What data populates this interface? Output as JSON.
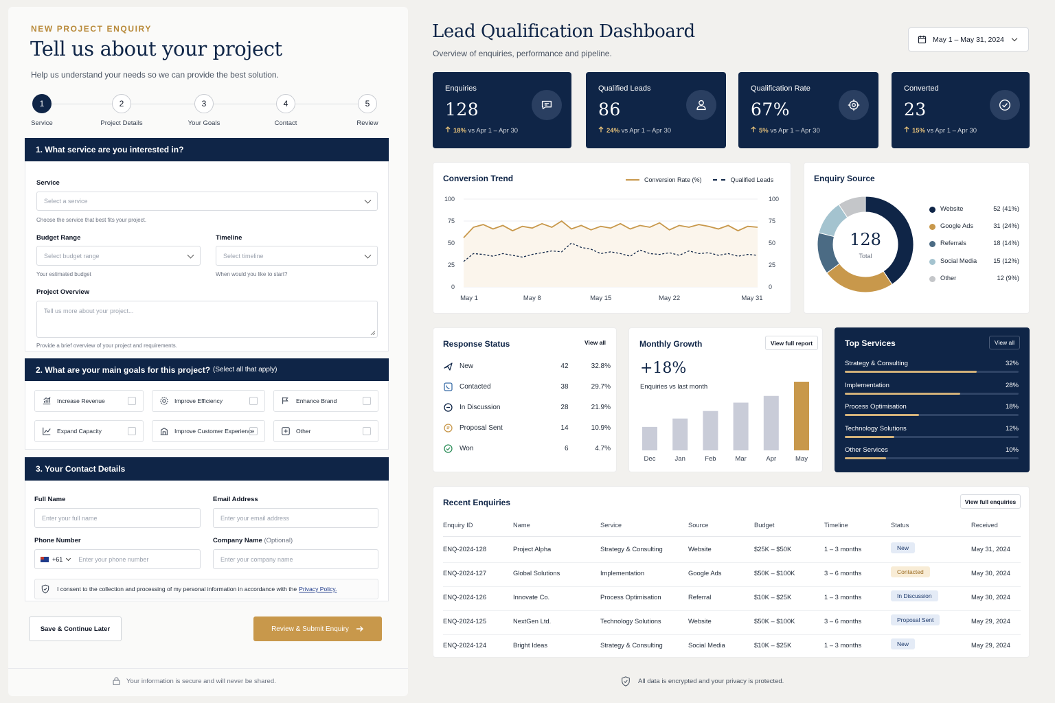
{
  "enquiry": {
    "eyebrow": "NEW PROJECT ENQUIRY",
    "title": "Tell us about your project",
    "subtitle": "Help us understand your needs so we can provide the best solution.",
    "steps": [
      {
        "num": "1",
        "label": "Service"
      },
      {
        "num": "2",
        "label": "Project Details"
      },
      {
        "num": "3",
        "label": "Your Goals"
      },
      {
        "num": "4",
        "label": "Contact"
      },
      {
        "num": "5",
        "label": "Review"
      }
    ],
    "section1": {
      "heading": "1.  What service are you interested in?",
      "service_label": "Service",
      "service_placeholder": "Select a service",
      "service_hint": "Choose the service that best fits your project.",
      "budget_label": "Budget Range",
      "budget_placeholder": "Select budget range",
      "budget_hint": "Your estimated budget",
      "timeline_label": "Timeline",
      "timeline_placeholder": "Select timeline",
      "timeline_hint": "When would you like to start?",
      "overview_label": "Project Overview",
      "overview_placeholder": "Tell us more about your project...",
      "overview_hint": "Provide a brief overview of your project and requirements."
    },
    "section2": {
      "heading": "2.  What are your main goals for this project?",
      "heading_note": "(Select all that apply)",
      "goals": [
        "Increase Revenue",
        "Improve Efficiency",
        "Enhance Brand",
        "Expand Capacity",
        "Improve Customer Experience",
        "Other"
      ]
    },
    "section3": {
      "heading": "3.  Your Contact Details",
      "name_label": "Full Name",
      "name_placeholder": "Enter your full name",
      "email_label": "Email Address",
      "email_placeholder": "Enter your email address",
      "phone_label": "Phone Number",
      "phone_code": "+61",
      "phone_placeholder": "Enter your phone number",
      "company_label": "Company Name",
      "company_optional": "(Optional)",
      "company_placeholder": "Enter your company name",
      "consent_text": "I consent to the collection and processing of my personal information in accordance with the",
      "consent_link": "Privacy Policy."
    },
    "save_label": "Save & Continue Later",
    "submit_label": "Review & Submit Enquiry",
    "footer": "Your information is secure and will never be shared."
  },
  "dashboard": {
    "title": "Lead Qualification Dashboard",
    "subtitle": "Overview of enquiries, performance and pipeline.",
    "date_range": "May 1 – May 31, 2024",
    "kpis": [
      {
        "title": "Enquiries",
        "value": "128",
        "delta": "18%",
        "compare": "vs Apr 1 – Apr 30",
        "icon": "chat-icon"
      },
      {
        "title": "Qualified Leads",
        "value": "86",
        "delta": "24%",
        "compare": "vs Apr 1 – Apr 30",
        "icon": "user-icon"
      },
      {
        "title": "Qualification Rate",
        "value": "67%",
        "delta": "5%",
        "compare": "vs Apr 1 – Apr 30",
        "icon": "target-icon"
      },
      {
        "title": "Converted",
        "value": "23",
        "delta": "15%",
        "compare": "vs Apr 1 – Apr 30",
        "icon": "check-circle-icon"
      }
    ],
    "trend": {
      "title": "Conversion Trend",
      "legend_rate": "Conversion Rate (%)",
      "legend_leads": "Qualified Leads"
    },
    "source": {
      "title": "Enquiry Source",
      "total": "128",
      "total_label": "Total"
    },
    "response": {
      "title": "Response Status",
      "view_all": "View all",
      "rows": [
        {
          "label": "New",
          "count": "42",
          "pct": "32.8%",
          "icon": "send-icon",
          "color": "#0f2547"
        },
        {
          "label": "Contacted",
          "count": "38",
          "pct": "29.7%",
          "icon": "phone-icon",
          "color": "#3b6ea8"
        },
        {
          "label": "In Discussion",
          "count": "28",
          "pct": "21.9%",
          "icon": "chat-icon",
          "color": "#0f2547"
        },
        {
          "label": "Proposal Sent",
          "count": "14",
          "pct": "10.9%",
          "icon": "document-icon",
          "color": "#c8984b"
        },
        {
          "label": "Won",
          "count": "6",
          "pct": "4.7%",
          "icon": "check-circle-icon",
          "color": "#2f8f5b"
        }
      ]
    },
    "growth": {
      "title": "Monthly Growth",
      "report": "View full report",
      "value": "+18%",
      "caption": "Enquiries vs last month"
    },
    "services": {
      "title": "Top Services",
      "view_all": "View all",
      "rows": [
        {
          "label": "Strategy & Consulting",
          "pct": "32%",
          "fill": 0.32
        },
        {
          "label": "Implementation",
          "pct": "28%",
          "fill": 0.28
        },
        {
          "label": "Process Optimisation",
          "pct": "18%",
          "fill": 0.18
        },
        {
          "label": "Technology Solutions",
          "pct": "12%",
          "fill": 0.12
        },
        {
          "label": "Other Services",
          "pct": "10%",
          "fill": 0.1
        }
      ]
    },
    "recent": {
      "title": "Recent Enquiries",
      "view_full": "View full enquiries",
      "columns": [
        "Enquiry ID",
        "Name",
        "Service",
        "Source",
        "Budget",
        "Timeline",
        "Status",
        "Received"
      ],
      "rows": [
        {
          "id": "ENQ-2024-128",
          "name": "Project Alpha",
          "service": "Strategy & Consulting",
          "source": "Website",
          "budget": "$25K – $50K",
          "timeline": "1 – 3 months",
          "status": "New",
          "received": "May 31, 2024"
        },
        {
          "id": "ENQ-2024-127",
          "name": "Global Solutions",
          "service": "Implementation",
          "source": "Google Ads",
          "budget": "$50K – $100K",
          "timeline": "3 – 6 months",
          "status": "Contacted",
          "received": "May 30, 2024"
        },
        {
          "id": "ENQ-2024-126",
          "name": "Innovate Co.",
          "service": "Process Optimisation",
          "source": "Referral",
          "budget": "$10K – $25K",
          "timeline": "1 – 3 months",
          "status": "In Discussion",
          "received": "May 30, 2024"
        },
        {
          "id": "ENQ-2024-125",
          "name": "NextGen Ltd.",
          "service": "Technology Solutions",
          "source": "Website",
          "budget": "$50K – $100K",
          "timeline": "3 – 6 months",
          "status": "Proposal Sent",
          "received": "May 29, 2024"
        },
        {
          "id": "ENQ-2024-124",
          "name": "Bright Ideas",
          "service": "Strategy & Consulting",
          "source": "Social Media",
          "budget": "$10K – $25K",
          "timeline": "1 – 3 months",
          "status": "New",
          "received": "May 29, 2024"
        }
      ],
      "status_colors": {
        "New": {
          "bg": "#e4ebf6",
          "fg": "#1e3a6b"
        },
        "Contacted": {
          "bg": "#f8ecd6",
          "fg": "#9a6a1f"
        },
        "In Discussion": {
          "bg": "#e4ebf6",
          "fg": "#1e3a6b"
        },
        "Proposal Sent": {
          "bg": "#e4ebf6",
          "fg": "#1e3a6b"
        }
      }
    },
    "footer": "All data is encrypted and your privacy is protected."
  },
  "chart_data": [
    {
      "type": "line",
      "title": "Conversion Trend",
      "x_ticks": [
        "May 1",
        "May 8",
        "May 15",
        "May 22",
        "May 31"
      ],
      "ylim": [
        0,
        100
      ],
      "y_ticks": [
        "0",
        "25",
        "50",
        "75",
        "100"
      ],
      "y2_ticks": [
        "0",
        "25",
        "50",
        "75",
        "100"
      ],
      "x": [
        1,
        2,
        3,
        4,
        5,
        6,
        7,
        8,
        9,
        10,
        11,
        12,
        13,
        14,
        15,
        16,
        17,
        18,
        19,
        20,
        21,
        22,
        23,
        24,
        25,
        26,
        27,
        28,
        29,
        30,
        31
      ],
      "series": [
        {
          "name": "Conversion Rate (%)",
          "color": "#c8984b",
          "style": "solid",
          "values": [
            56,
            68,
            71,
            66,
            70,
            64,
            69,
            67,
            72,
            68,
            75,
            66,
            70,
            65,
            69,
            67,
            72,
            66,
            70,
            68,
            73,
            65,
            70,
            68,
            71,
            69,
            66,
            70,
            64,
            69,
            68
          ]
        },
        {
          "name": "Qualified Leads",
          "color": "#0f2547",
          "style": "dashed",
          "values": [
            29,
            38,
            37,
            35,
            38,
            36,
            34,
            37,
            39,
            41,
            40,
            50,
            45,
            43,
            38,
            40,
            38,
            35,
            42,
            38,
            37,
            39,
            36,
            41,
            38,
            39,
            36,
            38,
            35,
            37,
            36
          ]
        }
      ],
      "grid": true
    },
    {
      "type": "pie",
      "title": "Enquiry Source",
      "labels": [
        "Website",
        "Google Ads",
        "Referrals",
        "Social Media",
        "Other"
      ],
      "values": [
        52,
        31,
        18,
        15,
        12
      ],
      "display": [
        "52 (41%)",
        "31 (24%)",
        "18 (14%)",
        "15 (12%)",
        "12 (9%)"
      ],
      "colors": [
        "#0f2547",
        "#c8984b",
        "#4b6b84",
        "#a4c3cf",
        "#c4c6c9"
      ]
    },
    {
      "type": "bar",
      "title": "Monthly Growth",
      "categories": [
        "Dec",
        "Jan",
        "Feb",
        "Mar",
        "Apr",
        "May"
      ],
      "values": [
        28,
        38,
        47,
        57,
        65,
        82
      ],
      "colors": [
        "#c9ccd8",
        "#c9ccd8",
        "#c9ccd8",
        "#c9ccd8",
        "#c9ccd8",
        "#c8984b"
      ]
    }
  ]
}
